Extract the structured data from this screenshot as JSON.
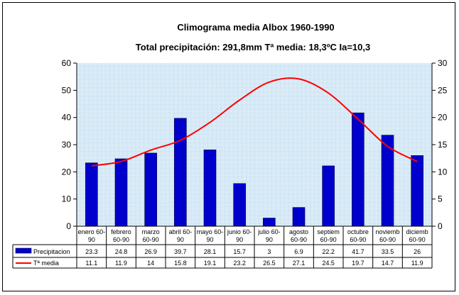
{
  "chart_data": {
    "type": "bar",
    "title": "Climograma media Albox 1960-1990",
    "subtitle": "Total precipitación: 291,8mm  Tª media: 18,3ºC  Ia=10,3",
    "categories": [
      [
        "enero 60-",
        "90"
      ],
      [
        "febrero",
        "60-90"
      ],
      [
        "marzo",
        "60-90"
      ],
      [
        "abril 60-",
        "90"
      ],
      [
        "mayo 60-",
        "90"
      ],
      [
        "junio 60-",
        "90"
      ],
      [
        "julio 60-",
        "90"
      ],
      [
        "agosto",
        "60-90"
      ],
      [
        "septiem",
        "60-90"
      ],
      [
        "octubre",
        "60-90"
      ],
      [
        "noviemb",
        "60-90"
      ],
      [
        "diciemb",
        "60-90"
      ]
    ],
    "series": [
      {
        "name": "Precipitacion",
        "type": "bar",
        "axis": "left",
        "color": "#0000CC",
        "values": [
          23.3,
          24.8,
          26.9,
          39.7,
          28.1,
          15.7,
          3,
          6.9,
          22.2,
          41.7,
          33.5,
          26
        ],
        "labels": [
          "23.3",
          "24.8",
          "26.9",
          "39.7",
          "28.1",
          "15.7",
          "3",
          "6.9",
          "22.2",
          "41.7",
          "33.5",
          "26"
        ]
      },
      {
        "name": "Tª media",
        "type": "line",
        "axis": "right",
        "color": "#FF0000",
        "values": [
          11.1,
          11.9,
          14,
          15.8,
          19.1,
          23.2,
          26.5,
          27.1,
          24.5,
          19.7,
          14.7,
          11.9
        ],
        "labels": [
          "11.1",
          "11.9",
          "14",
          "15.8",
          "19.1",
          "23.2",
          "26.5",
          "27.1",
          "24.5",
          "19.7",
          "14.7",
          "11.9"
        ]
      }
    ],
    "y_left": {
      "min": 0,
      "max": 60,
      "ticks": [
        "0",
        "10",
        "20",
        "30",
        "40",
        "50",
        "60"
      ]
    },
    "y_right": {
      "min": 0,
      "max": 30,
      "ticks": [
        "0",
        "5",
        "10",
        "15",
        "20",
        "25",
        "30"
      ]
    },
    "grid": false,
    "plot_background": "#D6E9F6",
    "legend": "data-table"
  }
}
